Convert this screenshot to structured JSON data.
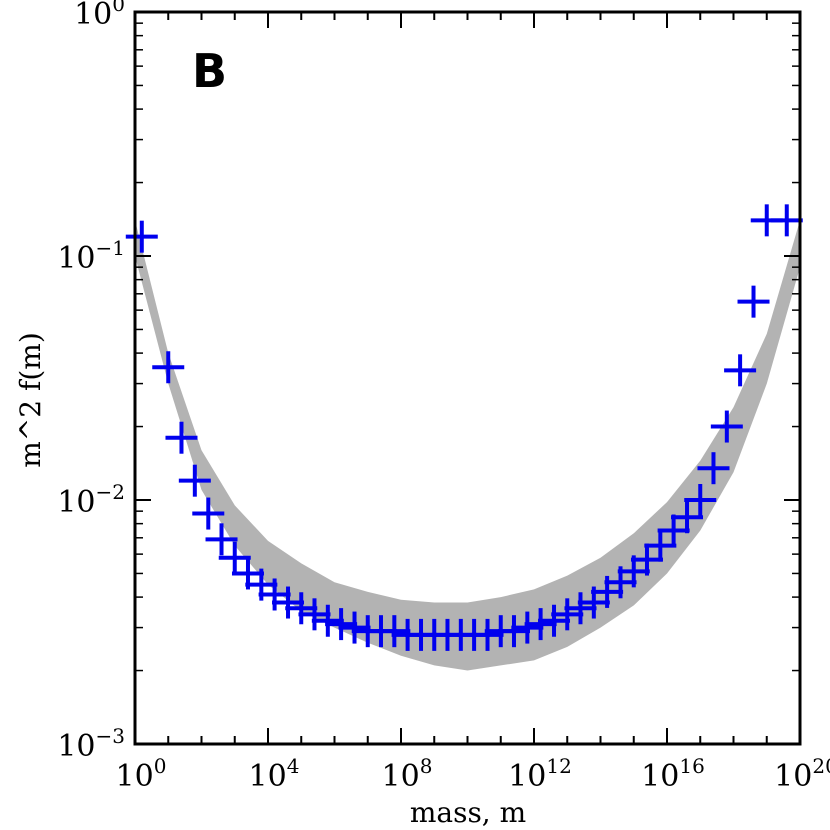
{
  "chart_data": {
    "type": "scatter",
    "panel_label": "B",
    "xlabel": "mass, m",
    "ylabel": "m^2 f(m)",
    "x_scale": "log",
    "y_scale": "log",
    "xlim": [
      1,
      1e+20
    ],
    "ylim": [
      0.001,
      1
    ],
    "x_ticks": [
      {
        "base": "10",
        "exp": "0",
        "value": 1
      },
      {
        "base": "10",
        "exp": "4",
        "value": 10000.0
      },
      {
        "base": "10",
        "exp": "8",
        "value": 100000000.0
      },
      {
        "base": "10",
        "exp": "12",
        "value": 1000000000000.0
      },
      {
        "base": "10",
        "exp": "16",
        "value": 1e+16
      },
      {
        "base": "10",
        "exp": "20",
        "value": 1e+20
      }
    ],
    "y_ticks": [
      {
        "base": "10",
        "exp": "−3",
        "value": 0.001
      },
      {
        "base": "10",
        "exp": "−2",
        "value": 0.01
      },
      {
        "base": "10",
        "exp": "−1",
        "value": 0.1
      },
      {
        "base": "10",
        "exp": "0",
        "value": 1
      }
    ],
    "colors": {
      "marker": "#0000ee",
      "band": "#b3b3b3",
      "axis": "#000000"
    },
    "series": [
      {
        "marker": "plus",
        "x": [
          1.6,
          10,
          25,
          63,
          160,
          400,
          1000,
          2500,
          6300,
          15800,
          40000,
          100000,
          250000,
          630000,
          1580000.0,
          4000000.0,
          10000000.0,
          25000000.0,
          63000000.0,
          158000000.0,
          400000000.0,
          1000000000.0,
          2500000000.0,
          6300000000.0,
          15800000000.0,
          40000000000.0,
          100000000000.0,
          250000000000.0,
          630000000000.0,
          1580000000000.0,
          4000000000000.0,
          10000000000000.0,
          25000000000000.0,
          63000000000000.0,
          158000000000000.0,
          400000000000000.0,
          1000000000000000.0,
          2500000000000000.0,
          6300000000000000.0,
          1.58e+16,
          4e+16,
          1e+17,
          2.5e+17,
          6.3e+17,
          1.58e+18,
          4e+18,
          1e+19,
          4e+19
        ],
        "y": [
          0.12,
          0.035,
          0.018,
          0.012,
          0.0088,
          0.0069,
          0.0058,
          0.005,
          0.0045,
          0.0041,
          0.0038,
          0.0036,
          0.0034,
          0.0032,
          0.0031,
          0.003,
          0.0029,
          0.0029,
          0.0029,
          0.0028,
          0.0028,
          0.0028,
          0.0028,
          0.0028,
          0.0028,
          0.0028,
          0.0029,
          0.0029,
          0.003,
          0.0031,
          0.0032,
          0.0034,
          0.0036,
          0.0038,
          0.0042,
          0.0046,
          0.0051,
          0.0057,
          0.0065,
          0.0075,
          0.0085,
          0.01,
          0.0135,
          0.02,
          0.034,
          0.065,
          0.14,
          0.14
        ]
      }
    ],
    "band": {
      "x": [
        1,
        10,
        100,
        1000,
        10000,
        100000,
        1000000.0,
        10000000.0,
        100000000.0,
        1000000000.0,
        10000000000.0,
        100000000000.0,
        1000000000000.0,
        10000000000000.0,
        100000000000000.0,
        1000000000000000.0,
        1e+16,
        1e+17,
        1e+18,
        1e+19,
        1e+20
      ],
      "lower": [
        0.1,
        0.03,
        0.011,
        0.0065,
        0.0045,
        0.0035,
        0.003,
        0.0026,
        0.0023,
        0.0021,
        0.002,
        0.0021,
        0.0022,
        0.0025,
        0.003,
        0.0037,
        0.005,
        0.0075,
        0.013,
        0.03,
        0.09
      ],
      "upper": [
        0.14,
        0.04,
        0.016,
        0.0095,
        0.0068,
        0.0055,
        0.0046,
        0.0042,
        0.0039,
        0.0038,
        0.0038,
        0.004,
        0.0043,
        0.0049,
        0.0058,
        0.0073,
        0.0098,
        0.0145,
        0.024,
        0.048,
        0.14
      ]
    }
  }
}
